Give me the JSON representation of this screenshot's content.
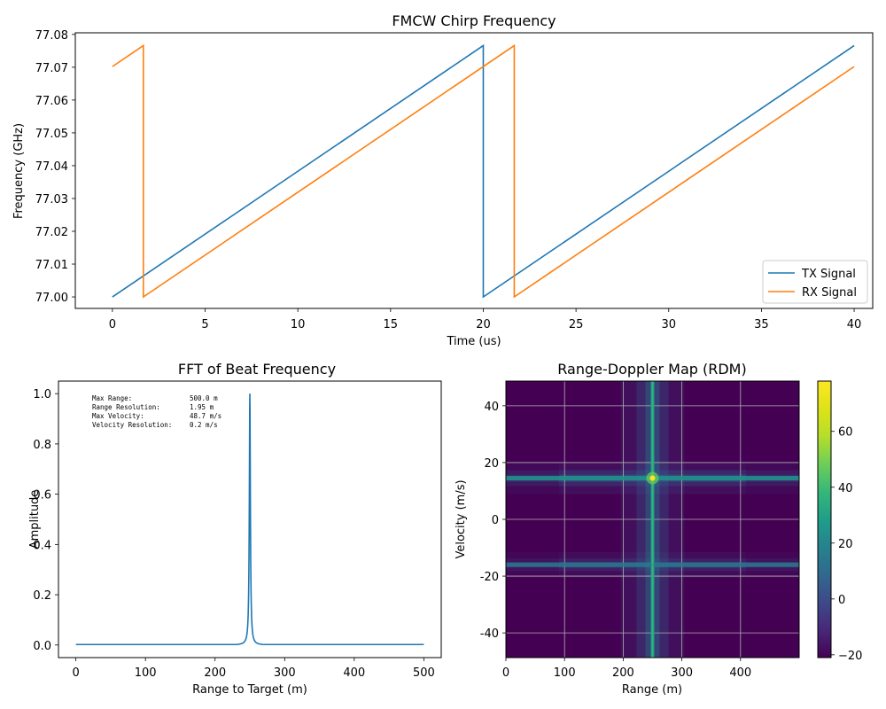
{
  "chart_data": [
    {
      "type": "line",
      "title": "FMCW Chirp Frequency",
      "xlabel": "Time (us)",
      "ylabel": "Frequency (GHz)",
      "xlim": [
        -2,
        41
      ],
      "ylim": [
        76.9965,
        77.0805
      ],
      "xticks": [
        0,
        5,
        10,
        15,
        20,
        25,
        30,
        35,
        40
      ],
      "yticks": [
        77.0,
        77.01,
        77.02,
        77.03,
        77.04,
        77.05,
        77.06,
        77.07,
        77.08
      ],
      "ytick_labels": [
        "77.00",
        "77.01",
        "77.02",
        "77.03",
        "77.04",
        "77.05",
        "77.06",
        "77.07",
        "77.08"
      ],
      "grid": false,
      "legend_position": "lower right",
      "series": [
        {
          "name": "TX Signal",
          "color": "#1f77b4",
          "x": [
            0,
            20,
            20,
            40
          ],
          "y": [
            77.0,
            77.0766,
            77.0,
            77.0766
          ]
        },
        {
          "name": "RX Signal",
          "color": "#ff7f0e",
          "x": [
            0,
            1.67,
            1.67,
            21.67,
            21.67,
            40
          ],
          "y": [
            77.0702,
            77.0766,
            77.0,
            77.0766,
            77.0,
            77.0702
          ]
        }
      ]
    },
    {
      "type": "line",
      "title": "FFT of Beat Frequency",
      "xlabel": "Range to Target (m)",
      "ylabel": "Amplitude",
      "xlim": [
        -25,
        525
      ],
      "ylim": [
        -0.05,
        1.05
      ],
      "xticks": [
        0,
        100,
        200,
        300,
        400,
        500
      ],
      "yticks": [
        0.0,
        0.2,
        0.4,
        0.6,
        0.8,
        1.0
      ],
      "ytick_labels": [
        "0.0",
        "0.2",
        "0.4",
        "0.6",
        "0.8",
        "1.0"
      ],
      "grid": false,
      "series": [
        {
          "color": "#1f77b4",
          "peak_x": 250,
          "peak_y": 1.0,
          "x_range": [
            0,
            500
          ],
          "baseline_y": 0.002
        }
      ],
      "annotation": [
        {
          "label": "Max Range:",
          "value": "500.0 m"
        },
        {
          "label": "Range Resolution:",
          "value": "1.95 m"
        },
        {
          "label": "Max Velocity:",
          "value": "48.7 m/s"
        },
        {
          "label": "Velocity Resolution:",
          "value": "0.2 m/s"
        }
      ]
    },
    {
      "type": "heatmap",
      "title": "Range-Doppler Map (RDM)",
      "xlabel": "Range (m)",
      "ylabel": "Velocity (m/s)",
      "xlim": [
        0,
        500
      ],
      "ylim": [
        -48.7,
        48.7
      ],
      "xticks": [
        0,
        100,
        200,
        300,
        400
      ],
      "yticks": [
        -40,
        -20,
        0,
        20,
        40
      ],
      "grid": true,
      "colormap": "viridis",
      "colorbar": {
        "min": -21,
        "max": 78,
        "ticks": [
          -20,
          0,
          20,
          40,
          60
        ]
      },
      "target": {
        "range": 250,
        "velocity": 14.5,
        "peak_value": 78
      },
      "ghost_velocity": -16,
      "background_value": -21
    }
  ]
}
